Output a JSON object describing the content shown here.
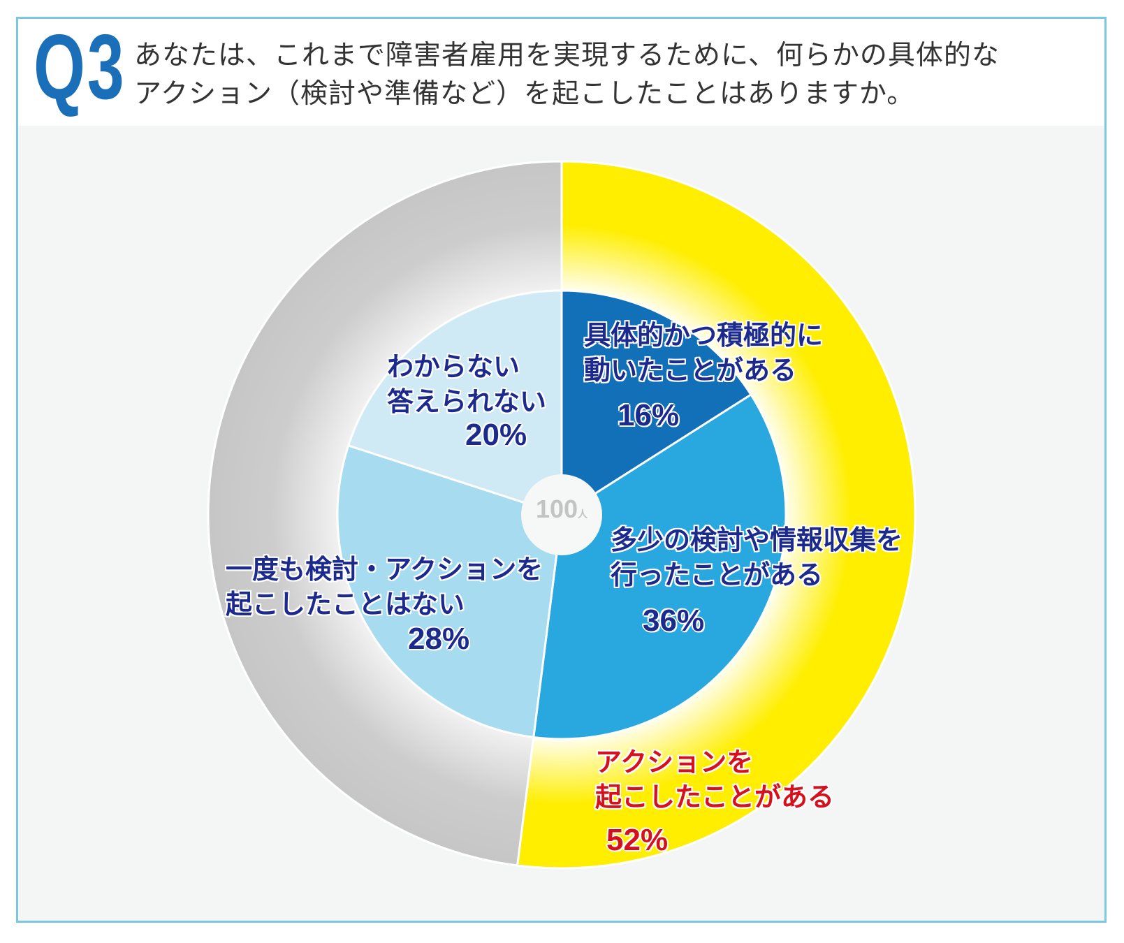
{
  "question": {
    "number": "Q3",
    "line1": "あなたは、これまで障害者雇用を実現するために、何らかの具体的な",
    "line2": "アクション（検討や準備など）を起こしたことはありますか。"
  },
  "chart_data": {
    "type": "pie",
    "subtype": "nested-donut",
    "total_label": "100",
    "total_unit": "人",
    "outer": [
      {
        "label": "アクションを起こしたことがある",
        "line1": "アクションを",
        "line2": "起こしたことがある",
        "value": 52,
        "value_label": "52%",
        "color": "#ffee00"
      },
      {
        "label": "（なし）",
        "value": 48,
        "color": "#c8c8c8"
      }
    ],
    "inner": [
      {
        "label": "具体的かつ積極的に動いたことがある",
        "line1": "具体的かつ積極的に",
        "line2": "動いたことがある",
        "value": 16,
        "value_label": "16%",
        "color": "#1170b8"
      },
      {
        "label": "多少の検討や情報収集を行ったことがある",
        "line1": "多少の検討や情報収集を",
        "line2": "行ったことがある",
        "value": 36,
        "value_label": "36%",
        "color": "#29a8e0"
      },
      {
        "label": "一度も検討・アクションを起こしたことはない",
        "line1": "一度も検討・アクションを",
        "line2": "起こしたことはない",
        "value": 28,
        "value_label": "28%",
        "color": "#a7dbef"
      },
      {
        "label": "わからない答えられない",
        "line1": "わからない",
        "line2": "答えられない",
        "value": 20,
        "value_label": "20%",
        "color": "#cfeaf5"
      }
    ],
    "label_color": "#1b2a8c",
    "highlight_label_color": "#d7101e"
  }
}
